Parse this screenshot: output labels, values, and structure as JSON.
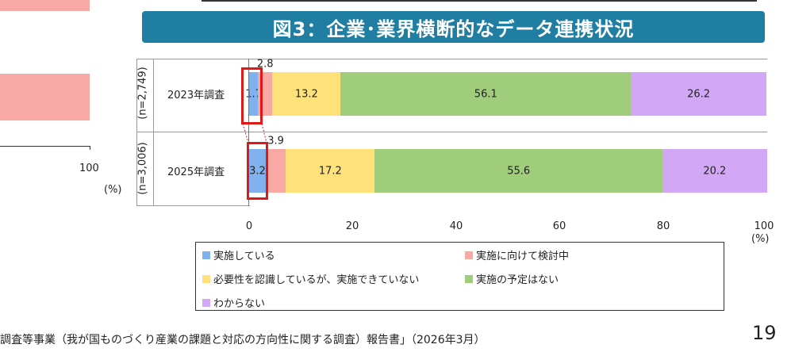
{
  "left_fragment": {
    "tick_label": "100",
    "unit": "(%)"
  },
  "title": "図3：企業･業界横断的なデータ連携状況",
  "chart_data": {
    "type": "bar",
    "stacked": true,
    "orientation": "horizontal",
    "title": "図3：企業･業界横断的なデータ連携状況",
    "rows": [
      {
        "label": "2023年調査",
        "n": "(n=2,749)",
        "values": [
          1.7,
          2.8,
          13.2,
          56.1,
          26.2
        ]
      },
      {
        "label": "2025年調査",
        "n": "(n=3,006)",
        "values": [
          3.2,
          3.9,
          17.2,
          55.6,
          20.2
        ]
      }
    ],
    "series": [
      {
        "name": "実施している",
        "color": "#7fb2ee"
      },
      {
        "name": "実施に向けて検討中",
        "color": "#f8a9a6"
      },
      {
        "name": "必要性を認識しているが、実施できていない",
        "color": "#ffe17a"
      },
      {
        "name": "実施の予定はない",
        "color": "#9fcd7c"
      },
      {
        "name": "わからない",
        "color": "#d2a7f6"
      }
    ],
    "xlim": [
      0,
      100
    ],
    "xticks": [
      "0",
      "20",
      "40",
      "60",
      "80",
      "100"
    ],
    "unit": "(%)",
    "grid": false,
    "legend": "bottom",
    "highlight": "実施している"
  },
  "footer": {
    "source": "調査等事業（我が国ものづくり産業の課題と対応の方向性に関する調査）報告書」（2026年3月）",
    "page_number": "19"
  }
}
